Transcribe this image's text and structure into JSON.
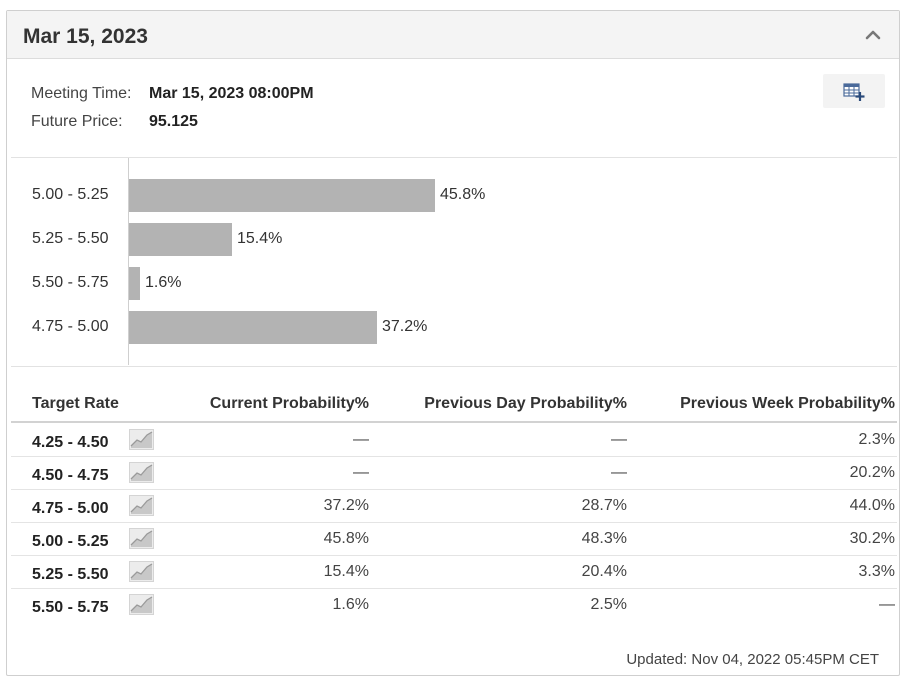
{
  "header": {
    "title": "Mar 15, 2023",
    "collapse_icon": "chevron-up-icon"
  },
  "meeting": {
    "time_label": "Meeting Time:",
    "time_value": "Mar 15, 2023 08:00PM",
    "price_label": "Future Price:",
    "price_value": "95.125",
    "add_table_icon": "table-add-icon"
  },
  "chart_data": {
    "type": "bar",
    "orientation": "horizontal",
    "categories": [
      "5.00 - 5.25",
      "5.25 - 5.50",
      "5.50 - 5.75",
      "4.75 - 5.00"
    ],
    "values": [
      45.8,
      15.4,
      1.6,
      37.2
    ],
    "value_labels": [
      "45.8%",
      "15.4%",
      "1.6%",
      "37.2%"
    ],
    "bar_color": "#b3b3b3",
    "xlim": [
      0,
      100
    ]
  },
  "table": {
    "headers": {
      "rate": "Target Rate",
      "current": "Current Probability%",
      "prev_day": "Previous Day Probability%",
      "prev_week": "Previous Week Probability%"
    },
    "rows": [
      {
        "rate": "4.25 - 4.50",
        "current": "—",
        "prev_day": "—",
        "prev_week": "2.3%"
      },
      {
        "rate": "4.50 - 4.75",
        "current": "—",
        "prev_day": "—",
        "prev_week": "20.2%"
      },
      {
        "rate": "4.75 - 5.00",
        "current": "37.2%",
        "prev_day": "28.7%",
        "prev_week": "44.0%"
      },
      {
        "rate": "5.00 - 5.25",
        "current": "45.8%",
        "prev_day": "48.3%",
        "prev_week": "30.2%"
      },
      {
        "rate": "5.25 - 5.50",
        "current": "15.4%",
        "prev_day": "20.4%",
        "prev_week": "3.3%"
      },
      {
        "rate": "5.50 - 5.75",
        "current": "1.6%",
        "prev_day": "2.5%",
        "prev_week": "—"
      }
    ],
    "row_icon": "line-chart-icon"
  },
  "footer": {
    "updated": "Updated: Nov 04, 2022 05:45PM CET"
  }
}
